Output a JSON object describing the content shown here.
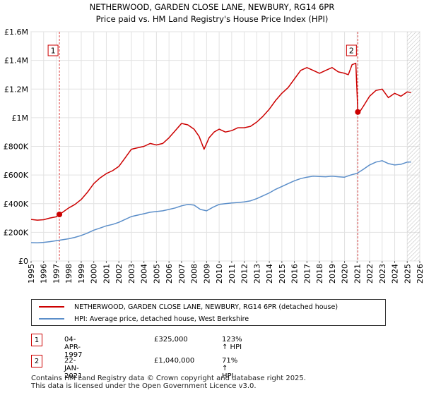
{
  "chart_data": {
    "type": "line",
    "title": "NETHERWOOD, GARDEN CLOSE LANE, NEWBURY, RG14 6PR",
    "subtitle": "Price paid vs. HM Land Registry's House Price Index (HPI)",
    "xlim": [
      1995,
      2026
    ],
    "ylim": [
      0,
      1600000
    ],
    "x_ticks": [
      1995,
      1996,
      1997,
      1998,
      1999,
      2000,
      2001,
      2002,
      2003,
      2004,
      2005,
      2006,
      2007,
      2008,
      2009,
      2010,
      2011,
      2012,
      2013,
      2014,
      2015,
      2016,
      2017,
      2018,
      2019,
      2020,
      2021,
      2022,
      2023,
      2024,
      2025,
      2026
    ],
    "y_ticks": [
      {
        "value": 0,
        "label": "£0"
      },
      {
        "value": 200000,
        "label": "£200K"
      },
      {
        "value": 400000,
        "label": "£400K"
      },
      {
        "value": 600000,
        "label": "£600K"
      },
      {
        "value": 800000,
        "label": "£800K"
      },
      {
        "value": 1000000,
        "label": "£1M"
      },
      {
        "value": 1200000,
        "label": "£1.2M"
      },
      {
        "value": 1400000,
        "label": "£1.4M"
      },
      {
        "value": 1600000,
        "label": "£1.6M"
      }
    ],
    "grid": true,
    "series": [
      {
        "name": "NETHERWOOD, GARDEN CLOSE LANE, NEWBURY, RG14 6PR (detached house)",
        "color": "#cc0000",
        "x": [
          1995.0,
          1995.5,
          1996.0,
          1996.5,
          1997.0,
          1997.26,
          1997.6,
          1998.0,
          1998.5,
          1999.0,
          1999.5,
          2000.0,
          2000.5,
          2001.0,
          2001.5,
          2002.0,
          2002.5,
          2003.0,
          2003.5,
          2004.0,
          2004.5,
          2005.0,
          2005.5,
          2006.0,
          2006.5,
          2007.0,
          2007.5,
          2008.0,
          2008.4,
          2008.8,
          2009.2,
          2009.6,
          2010.0,
          2010.5,
          2011.0,
          2011.5,
          2012.0,
          2012.5,
          2013.0,
          2013.5,
          2014.0,
          2014.5,
          2015.0,
          2015.5,
          2016.0,
          2016.5,
          2017.0,
          2017.5,
          2018.0,
          2018.5,
          2019.0,
          2019.5,
          2020.0,
          2020.3,
          2020.6,
          2020.9,
          2021.06,
          2021.2,
          2021.5,
          2022.0,
          2022.5,
          2023.0,
          2023.5,
          2024.0,
          2024.5,
          2025.0,
          2025.3
        ],
        "values": [
          290000,
          285000,
          288000,
          300000,
          308000,
          325000,
          345000,
          370000,
          395000,
          430000,
          480000,
          540000,
          580000,
          610000,
          630000,
          660000,
          720000,
          780000,
          790000,
          800000,
          820000,
          810000,
          820000,
          860000,
          910000,
          960000,
          950000,
          920000,
          870000,
          780000,
          860000,
          900000,
          920000,
          900000,
          910000,
          930000,
          930000,
          940000,
          970000,
          1010000,
          1060000,
          1120000,
          1170000,
          1210000,
          1270000,
          1330000,
          1350000,
          1330000,
          1310000,
          1330000,
          1350000,
          1320000,
          1310000,
          1300000,
          1370000,
          1380000,
          1040000,
          1040000,
          1080000,
          1150000,
          1190000,
          1200000,
          1140000,
          1170000,
          1150000,
          1180000,
          1175000
        ]
      },
      {
        "name": "HPI: Average price, detached house, West Berkshire",
        "color": "#5b8ec9",
        "x": [
          1995.0,
          1995.5,
          1996.0,
          1996.5,
          1997.0,
          1997.5,
          1998.0,
          1998.5,
          1999.0,
          1999.5,
          2000.0,
          2000.5,
          2001.0,
          2001.5,
          2002.0,
          2002.5,
          2003.0,
          2003.5,
          2004.0,
          2004.5,
          2005.0,
          2005.5,
          2006.0,
          2006.5,
          2007.0,
          2007.5,
          2008.0,
          2008.5,
          2009.0,
          2009.5,
          2010.0,
          2010.5,
          2011.0,
          2011.5,
          2012.0,
          2012.5,
          2013.0,
          2013.5,
          2014.0,
          2014.5,
          2015.0,
          2015.5,
          2016.0,
          2016.5,
          2017.0,
          2017.5,
          2018.0,
          2018.5,
          2019.0,
          2019.5,
          2020.0,
          2020.5,
          2021.0,
          2021.5,
          2022.0,
          2022.5,
          2023.0,
          2023.5,
          2024.0,
          2024.5,
          2025.0,
          2025.3
        ],
        "values": [
          128000,
          127000,
          130000,
          135000,
          142000,
          148000,
          155000,
          165000,
          178000,
          195000,
          215000,
          230000,
          245000,
          255000,
          270000,
          290000,
          310000,
          320000,
          330000,
          340000,
          345000,
          350000,
          360000,
          370000,
          385000,
          395000,
          390000,
          360000,
          350000,
          375000,
          395000,
          400000,
          405000,
          408000,
          412000,
          420000,
          435000,
          455000,
          475000,
          500000,
          520000,
          540000,
          560000,
          575000,
          585000,
          592000,
          590000,
          588000,
          592000,
          588000,
          585000,
          600000,
          612000,
          640000,
          670000,
          690000,
          700000,
          680000,
          670000,
          675000,
          690000,
          690000
        ]
      }
    ],
    "markers": [
      {
        "id": "1",
        "x": 1997.26,
        "value": 325000
      },
      {
        "id": "2",
        "x": 2021.06,
        "value": 1040000
      }
    ],
    "hatch_from": 2025.0
  },
  "legend": {
    "property_label": "NETHERWOOD, GARDEN CLOSE LANE, NEWBURY, RG14 6PR (detached house)",
    "hpi_label": "HPI: Average price, detached house, West Berkshire"
  },
  "transactions": [
    {
      "id": "1",
      "date": "04-APR-1997",
      "price": "£325,000",
      "hpi": "123% ↑ HPI"
    },
    {
      "id": "2",
      "date": "22-JAN-2021",
      "price": "£1,040,000",
      "hpi": "71% ↑ HPI"
    }
  ],
  "footer": {
    "line1": "Contains HM Land Registry data © Crown copyright and database right 2025.",
    "line2": "This data is licensed under the Open Government Licence v3.0."
  }
}
